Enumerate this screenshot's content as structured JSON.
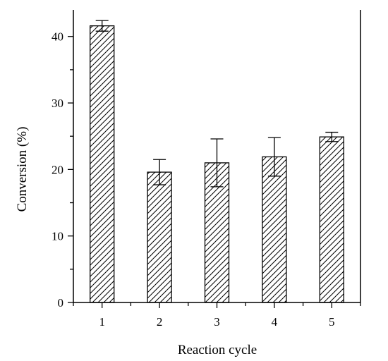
{
  "chart_data": {
    "type": "bar",
    "categories": [
      "1",
      "2",
      "3",
      "4",
      "5"
    ],
    "values": [
      41.6,
      19.6,
      21.0,
      21.9,
      24.9
    ],
    "errors": [
      0.8,
      1.9,
      3.6,
      2.9,
      0.7
    ],
    "xlabel": "Reaction cycle",
    "ylabel": "Conversion (%)",
    "ylim": [
      0,
      44
    ],
    "yticks": [
      0,
      10,
      20,
      30,
      40
    ],
    "bar_pattern": "diagonal-hatch",
    "grid": false,
    "legend": "none",
    "colors": {
      "bar_fill": "#ffffff",
      "bar_stroke": "#000000",
      "hatch": "#000000"
    }
  }
}
